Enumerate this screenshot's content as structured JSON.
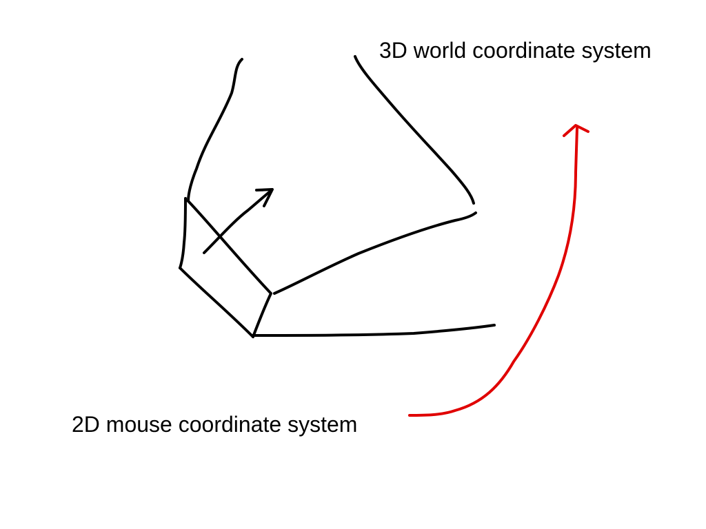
{
  "labels": {
    "world_3d": "3D world coordinate system",
    "mouse_2d": "2D mouse coordinate system"
  },
  "colors": {
    "background": "#ffffff",
    "ink": "#000000",
    "arrow_red": "#e00000"
  }
}
